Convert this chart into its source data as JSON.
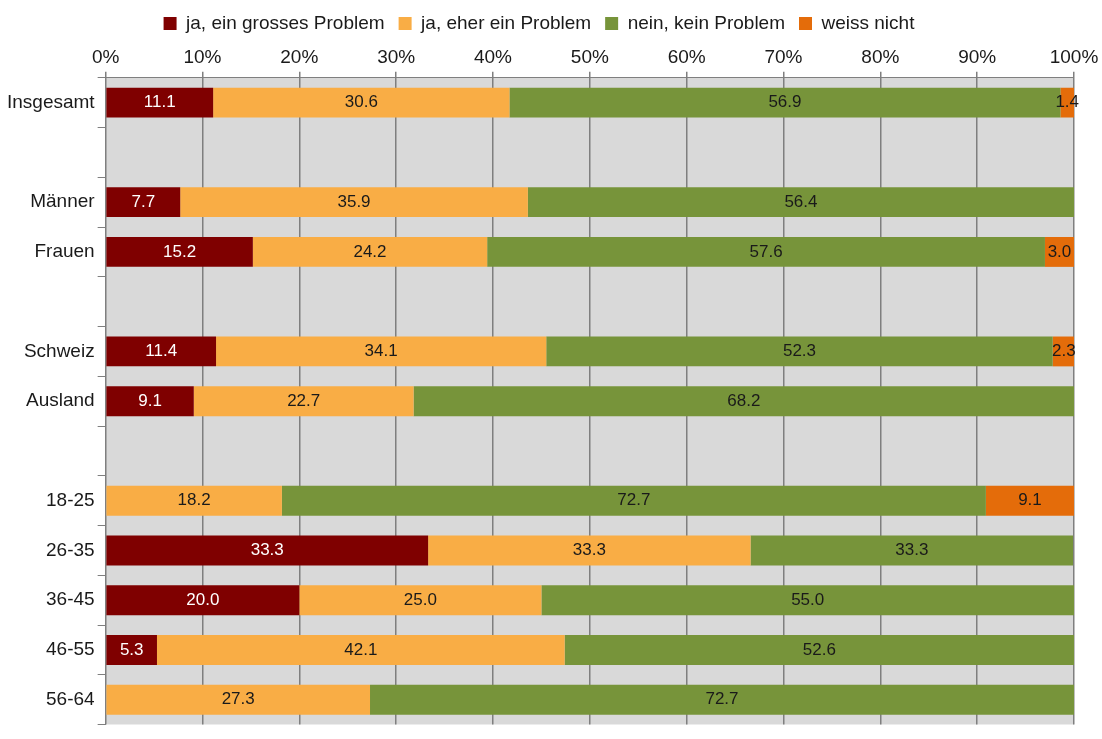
{
  "chart_data": {
    "type": "bar",
    "orientation": "horizontal",
    "stacked": true,
    "legend": "top",
    "grid": "x",
    "categories": [
      "Insgesamt",
      null,
      "Männer",
      "Frauen",
      null,
      "Schweiz",
      "Ausland",
      null,
      "18-25",
      "26-35",
      "36-45",
      "46-55",
      "56-64"
    ],
    "xlim": [
      0,
      100
    ],
    "xticks": [
      {
        "value": 0,
        "label": "0%"
      },
      {
        "value": 10,
        "label": "10%"
      },
      {
        "value": 20,
        "label": "20%"
      },
      {
        "value": 30,
        "label": "30%"
      },
      {
        "value": 40,
        "label": "40%"
      },
      {
        "value": 50,
        "label": "50%"
      },
      {
        "value": 60,
        "label": "60%"
      },
      {
        "value": 70,
        "label": "70%"
      },
      {
        "value": 80,
        "label": "80%"
      },
      {
        "value": 90,
        "label": "90%"
      },
      {
        "value": 100,
        "label": "100%"
      }
    ],
    "series": [
      {
        "name": "ja, ein grosses Problem",
        "color": "#7f0000",
        "values": [
          11.1,
          null,
          7.7,
          15.2,
          null,
          11.4,
          9.1,
          null,
          null,
          33.3,
          20.0,
          5.3,
          null
        ],
        "value_labels": [
          "11.1",
          null,
          "7.7",
          "15.2",
          null,
          "11.4",
          "9.1",
          null,
          null,
          "33.3",
          "20.0",
          "5.3",
          null
        ]
      },
      {
        "name": "ja, eher ein Problem",
        "color": "#f9ad45",
        "values": [
          30.6,
          null,
          35.9,
          24.2,
          null,
          34.1,
          22.7,
          null,
          18.2,
          33.3,
          25.0,
          42.1,
          27.3
        ],
        "value_labels": [
          "30.6",
          null,
          "35.9",
          "24.2",
          null,
          "34.1",
          "22.7",
          null,
          "18.2",
          "33.3",
          "25.0",
          "42.1",
          "27.3"
        ]
      },
      {
        "name": "nein, kein Problem",
        "color": "#77943a",
        "values": [
          56.9,
          null,
          56.4,
          57.6,
          null,
          52.3,
          68.2,
          null,
          72.7,
          33.3,
          55.0,
          52.6,
          72.7
        ],
        "value_labels": [
          "56.9",
          null,
          "56.4",
          "57.6",
          null,
          "52.3",
          "68.2",
          null,
          "72.7",
          "33.3",
          "55.0",
          "52.6",
          "72.7"
        ]
      },
      {
        "name": "weiss nicht",
        "color": "#e46c0a",
        "values": [
          1.4,
          null,
          null,
          3.0,
          null,
          2.3,
          null,
          null,
          9.1,
          null,
          null,
          null,
          null
        ],
        "value_labels": [
          "1.4",
          null,
          null,
          "3.0",
          null,
          "2.3",
          null,
          null,
          "9.1",
          null,
          null,
          null,
          null
        ]
      }
    ]
  }
}
